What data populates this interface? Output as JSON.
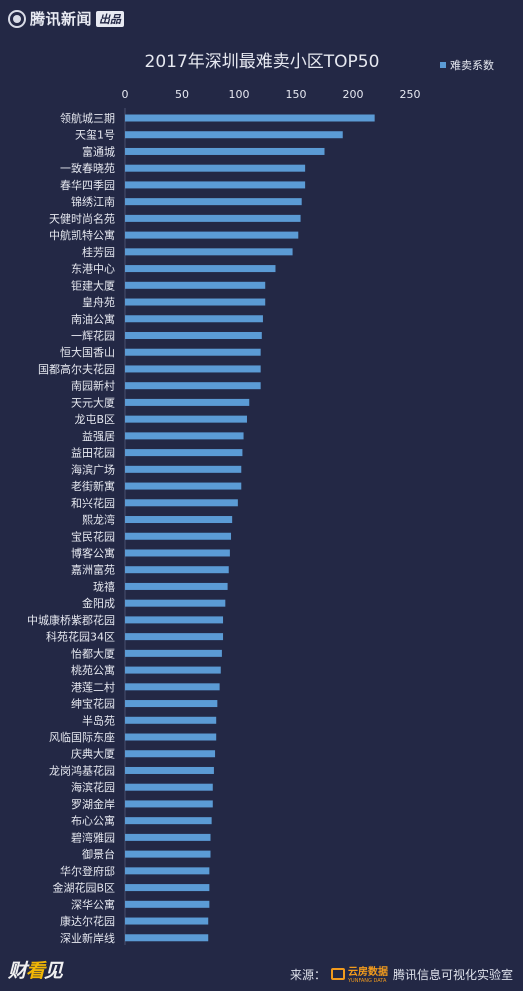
{
  "header": {
    "brand": "腾讯新闻",
    "brand_tag": "出品"
  },
  "footer": {
    "brand_left": "财",
    "brand_mid": "看",
    "brand_right": "见",
    "source_label": "来源：",
    "source_logo_name": "云房数据",
    "source_logo_sub": "YUNFANG DATA",
    "source_lab": "腾讯信息可视化实验室"
  },
  "colors": {
    "background": "#232845",
    "bar": "#5b9bd5",
    "text": "#e6e8f0",
    "grid": "#4a4f6e"
  },
  "chart_data": {
    "type": "bar",
    "orientation": "horizontal",
    "title": "2017年深圳最难卖小区TOP50",
    "legend": {
      "label": "难卖系数",
      "position": "top-right"
    },
    "xlim": [
      0,
      250
    ],
    "xticks": [
      0,
      50,
      100,
      150,
      200,
      250
    ],
    "grid": false,
    "series": [
      {
        "name": "难卖系数"
      }
    ],
    "categories": [
      "领航城三期",
      "天玺1号",
      "富通城",
      "一致春晓苑",
      "春华四季园",
      "锦绣江南",
      "天健时尚名苑",
      "中航凯特公寓",
      "桂芳园",
      "东港中心",
      "钜建大厦",
      "皇舟苑",
      "南油公寓",
      "一辉花园",
      "恒大国香山",
      "国都高尔夫花园",
      "南园新村",
      "天元大厦",
      "龙屯B区",
      "益强居",
      "益田花园",
      "海滨广场",
      "老街新寓",
      "和兴花园",
      "熙龙湾",
      "宝民花园",
      "博客公寓",
      "嘉洲富苑",
      "珑禧",
      "金阳成",
      "中城康桥紫郡花园",
      "科苑花园34区",
      "怡都大厦",
      "桃苑公寓",
      "港莲二村",
      "绅宝花园",
      "半岛苑",
      "风临国际东座",
      "庆典大厦",
      "龙岗鸿基花园",
      "海滨花园",
      "罗湖金岸",
      "布心公寓",
      "碧湾雅园",
      "御景台",
      "华尔登府邸",
      "金湖花园B区",
      "深华公寓",
      "康达尔花园",
      "深业新岸线"
    ],
    "values": [
      219,
      191,
      175,
      158,
      158,
      155,
      154,
      152,
      147,
      132,
      123,
      123,
      121,
      120,
      119,
      119,
      119,
      109,
      107,
      104,
      103,
      102,
      102,
      99,
      94,
      93,
      92,
      91,
      90,
      88,
      86,
      86,
      85,
      84,
      83,
      81,
      80,
      80,
      79,
      78,
      77,
      77,
      76,
      75,
      75,
      74,
      74,
      74,
      73,
      73
    ]
  }
}
